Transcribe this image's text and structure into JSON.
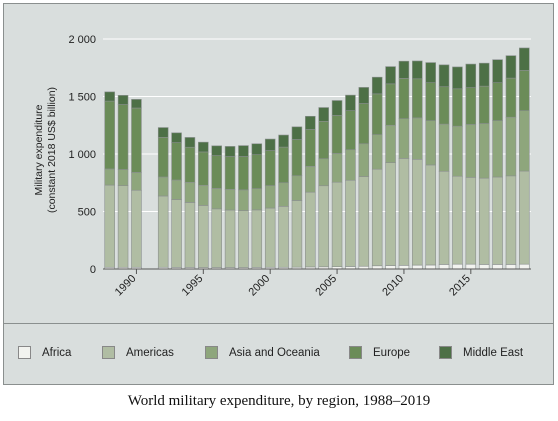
{
  "caption": "World military expenditure, by region, 1988–2019",
  "chart_data": {
    "type": "bar",
    "stacked": true,
    "ylabel_line1": "Military expenditure",
    "ylabel_line2": "(constant 2018 US$ billion)",
    "ylim": [
      0,
      2000
    ],
    "yticks": [
      {
        "value": 0,
        "label": "0"
      },
      {
        "value": 500,
        "label": "500"
      },
      {
        "value": 1000,
        "label": "1 000"
      },
      {
        "value": 1500,
        "label": "1 500"
      },
      {
        "value": 2000,
        "label": "2 000"
      }
    ],
    "xlim": [
      1987.5,
      2019.5
    ],
    "xticks": [
      1990,
      1995,
      2000,
      2005,
      2010,
      2015
    ],
    "x": [
      1988,
      1989,
      1990,
      1992,
      1993,
      1994,
      1995,
      1996,
      1997,
      1998,
      1999,
      2000,
      2001,
      2002,
      2003,
      2004,
      2005,
      2006,
      2007,
      2008,
      2009,
      2010,
      2011,
      2012,
      2013,
      2014,
      2015,
      2016,
      2017,
      2018,
      2019
    ],
    "series": [
      {
        "name": "Africa",
        "color": "#f2f3ef",
        "values": [
          15,
          15,
          15,
          15,
          14,
          14,
          13,
          13,
          13,
          13,
          14,
          15,
          15,
          16,
          18,
          19,
          20,
          22,
          24,
          28,
          30,
          32,
          34,
          35,
          40,
          42,
          42,
          40,
          40,
          40,
          42
        ]
      },
      {
        "name": "Americas",
        "color": "#b0bda3",
        "values": [
          715,
          710,
          670,
          620,
          590,
          565,
          540,
          510,
          500,
          495,
          500,
          515,
          530,
          580,
          650,
          705,
          735,
          750,
          780,
          840,
          895,
          930,
          920,
          870,
          810,
          765,
          755,
          750,
          760,
          770,
          810
        ]
      },
      {
        "name": "Asia and Oceania",
        "color": "#8ea67c",
        "values": [
          140,
          140,
          155,
          165,
          170,
          175,
          175,
          178,
          180,
          180,
          185,
          195,
          205,
          215,
          225,
          235,
          250,
          265,
          285,
          300,
          325,
          345,
          360,
          385,
          410,
          435,
          460,
          475,
          490,
          510,
          525
        ]
      },
      {
        "name": "Europe",
        "color": "#6b8c58",
        "values": [
          590,
          565,
          560,
          345,
          325,
          305,
          290,
          285,
          285,
          290,
          295,
          305,
          310,
          315,
          320,
          325,
          330,
          340,
          350,
          355,
          360,
          350,
          340,
          330,
          325,
          325,
          320,
          325,
          330,
          340,
          350
        ]
      },
      {
        "name": "Middle East",
        "color": "#4d7046",
        "values": [
          80,
          80,
          75,
          85,
          85,
          85,
          85,
          85,
          88,
          95,
          95,
          100,
          105,
          110,
          115,
          120,
          130,
          135,
          140,
          145,
          150,
          150,
          155,
          175,
          190,
          190,
          205,
          200,
          200,
          195,
          195
        ]
      }
    ]
  }
}
